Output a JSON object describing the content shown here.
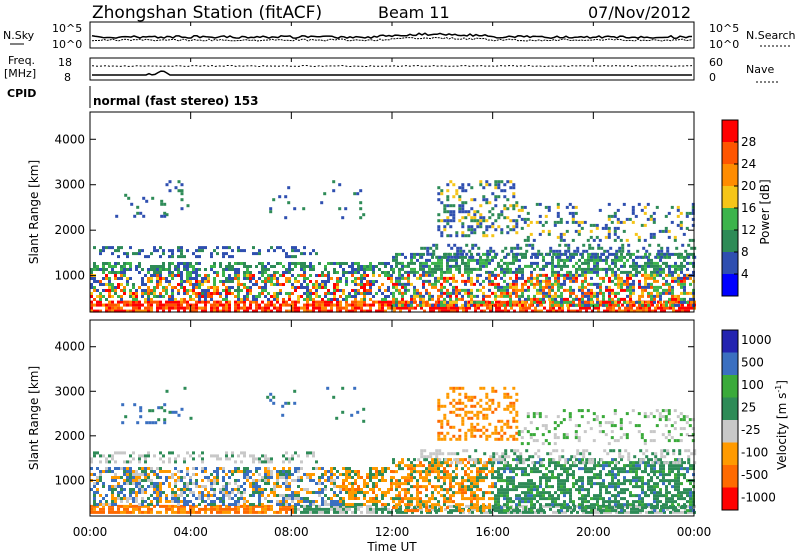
{
  "header": {
    "title": "Zhongshan Station (fitACF)",
    "beam": "Beam 11",
    "date": "07/Nov/2012"
  },
  "panel_nsky": {
    "label_left": "N.Sky",
    "label_right": "N.Search",
    "ticks_left": [
      "10^5",
      "10^0"
    ],
    "ticks_right": [
      "10^5",
      "10^0"
    ]
  },
  "panel_freq": {
    "label_left_1": "Freq.",
    "label_left_2": "[MHz]",
    "label_right": "Nave",
    "ticks_left": [
      "18",
      "8"
    ],
    "ticks_right": [
      "60",
      "0"
    ]
  },
  "panel_cpid": {
    "label": "CPID",
    "text": "normal (fast stereo) 153"
  },
  "colors": {
    "power": [
      "#0000ff",
      "#2f4fb0",
      "#2e8b57",
      "#3cb44b",
      "#f5c518",
      "#ff8c00",
      "#ff5500",
      "#ff0000"
    ],
    "velocity": [
      "#ff0000",
      "#ff6a00",
      "#ff9a00",
      "#c8c8c8",
      "#2e8b57",
      "#3aaa3a",
      "#3a6fc0",
      "#2323b0"
    ]
  },
  "chart_data": [
    {
      "type": "heatmap",
      "panel": "power",
      "ylabel": "Slant Range [km]",
      "y_ticks": [
        1000,
        2000,
        3000,
        4000
      ],
      "ylim": [
        200,
        4600
      ],
      "colorbar_label": "Power [dB]",
      "colorbar_ticks": [
        4,
        8,
        12,
        16,
        20,
        24,
        28
      ],
      "colorbar_range": [
        0,
        32
      ]
    },
    {
      "type": "heatmap",
      "panel": "velocity",
      "xlabel": "Time UT",
      "x_ticks": [
        "00:00",
        "04:00",
        "08:00",
        "12:00",
        "16:00",
        "20:00",
        "00:00"
      ],
      "ylabel": "Slant Range [km]",
      "y_ticks": [
        1000,
        2000,
        3000,
        4000
      ],
      "ylim": [
        200,
        4600
      ],
      "colorbar_label": "Velocity [m s-1]",
      "colorbar_label_parts": [
        "Velocity [m s",
        "-1",
        "]"
      ],
      "colorbar_ticks": [
        "-1000",
        "-500",
        "-100",
        "-25",
        "25",
        "100",
        "500",
        "1000"
      ]
    }
  ]
}
